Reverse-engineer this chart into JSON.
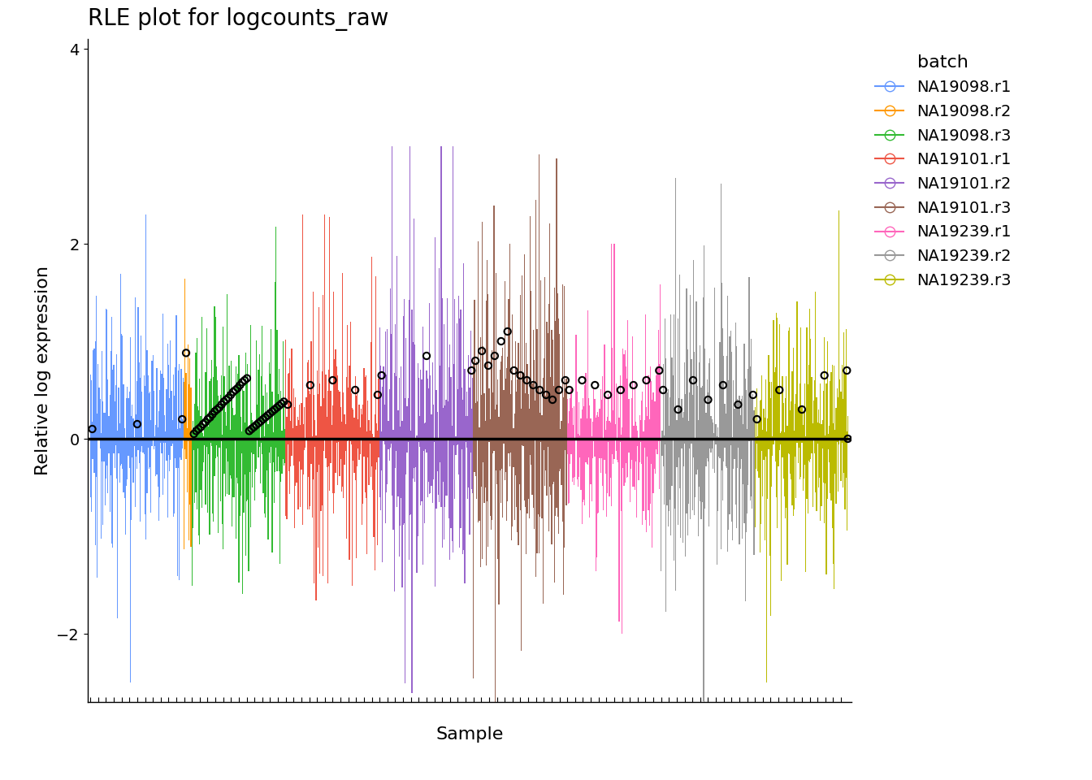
{
  "title": "RLE plot for logcounts_raw",
  "xlabel": "Sample",
  "ylabel": "Relative log expression",
  "ylim": [
    -2.7,
    4.1
  ],
  "yticks": [
    -2,
    0,
    2,
    4
  ],
  "batch_configs": [
    {
      "name": "NA19098.r1",
      "color": "#6699FF",
      "n_cells": 96,
      "upper_scale": 1.1,
      "lower_scale": 1.0,
      "upper_max": 2.3,
      "lower_max": 2.5,
      "median_vals": [
        0.1,
        0.15,
        0.2
      ]
    },
    {
      "name": "NA19098.r2",
      "color": "#FF9900",
      "n_cells": 8,
      "upper_scale": 1.5,
      "lower_scale": 1.5,
      "upper_max": 3.3,
      "lower_max": 1.5,
      "median_vals": [
        0.88
      ]
    },
    {
      "name": "NA19098.r3",
      "color": "#33BB33",
      "n_cells": 96,
      "upper_scale": 1.2,
      "lower_scale": 1.1,
      "upper_max": 2.5,
      "lower_max": 2.5,
      "median_vals": [
        0.05,
        0.08,
        0.1,
        0.12,
        0.15,
        0.17,
        0.2,
        0.22,
        0.25,
        0.28,
        0.3,
        0.32,
        0.35,
        0.38,
        0.4,
        0.42,
        0.45,
        0.48,
        0.5,
        0.52,
        0.55,
        0.58,
        0.6,
        0.62,
        0.08,
        0.1,
        0.12,
        0.14,
        0.16,
        0.18,
        0.2,
        0.22,
        0.24,
        0.26,
        0.28,
        0.3,
        0.32,
        0.34,
        0.36,
        0.38
      ]
    },
    {
      "name": "NA19101.r1",
      "color": "#EE5544",
      "n_cells": 96,
      "upper_scale": 1.1,
      "lower_scale": 1.0,
      "upper_max": 2.3,
      "lower_max": 2.3,
      "median_vals": [
        0.35,
        0.55,
        0.6,
        0.5,
        0.45
      ]
    },
    {
      "name": "NA19101.r2",
      "color": "#9966CC",
      "n_cells": 96,
      "upper_scale": 1.7,
      "lower_scale": 1.4,
      "upper_max": 3.0,
      "lower_max": 3.0,
      "median_vals": [
        0.65,
        0.85,
        0.7
      ]
    },
    {
      "name": "NA19101.r3",
      "color": "#996655",
      "n_cells": 96,
      "upper_scale": 1.8,
      "lower_scale": 1.5,
      "upper_max": 3.8,
      "lower_max": 3.5,
      "median_vals": [
        0.8,
        0.9,
        0.75,
        0.85,
        1.0,
        1.1,
        0.7,
        0.65,
        0.6,
        0.55,
        0.5,
        0.45,
        0.4,
        0.5,
        0.6
      ]
    },
    {
      "name": "NA19239.r1",
      "color": "#FF66BB",
      "n_cells": 96,
      "upper_scale": 1.0,
      "lower_scale": 0.9,
      "upper_max": 2.0,
      "lower_max": 2.0,
      "median_vals": [
        0.5,
        0.6,
        0.55,
        0.45,
        0.5,
        0.55,
        0.6,
        0.7
      ]
    },
    {
      "name": "NA19239.r2",
      "color": "#999999",
      "n_cells": 96,
      "upper_scale": 1.5,
      "lower_scale": 1.3,
      "upper_max": 3.2,
      "lower_max": 3.0,
      "median_vals": [
        0.5,
        0.3,
        0.6,
        0.4,
        0.55,
        0.35,
        0.45
      ]
    },
    {
      "name": "NA19239.r3",
      "color": "#BBBB00",
      "n_cells": 96,
      "upper_scale": 1.2,
      "lower_scale": 1.1,
      "upper_max": 2.5,
      "lower_max": 2.5,
      "median_vals": [
        0.2,
        0.5,
        0.3,
        0.65,
        0.7
      ]
    }
  ],
  "legend_entries": [
    {
      "name": "NA19098.r1",
      "color": "#6699FF"
    },
    {
      "name": "NA19098.r2",
      "color": "#FF9900"
    },
    {
      "name": "NA19098.r3",
      "color": "#33BB33"
    },
    {
      "name": "NA19101.r1",
      "color": "#EE5544"
    },
    {
      "name": "NA19101.r2",
      "color": "#9966CC"
    },
    {
      "name": "NA19101.r3",
      "color": "#996655"
    },
    {
      "name": "NA19239.r1",
      "color": "#FF66BB"
    },
    {
      "name": "NA19239.r2",
      "color": "#999999"
    },
    {
      "name": "NA19239.r3",
      "color": "#BBBB00"
    }
  ],
  "background_color": "#ffffff",
  "zero_line_color": "#888888",
  "median_dot_color": "#000000",
  "median_dot_size": 35,
  "title_fontsize": 20,
  "label_fontsize": 16,
  "tick_fontsize": 14,
  "legend_title_fontsize": 16,
  "legend_fontsize": 14,
  "seed": 123
}
